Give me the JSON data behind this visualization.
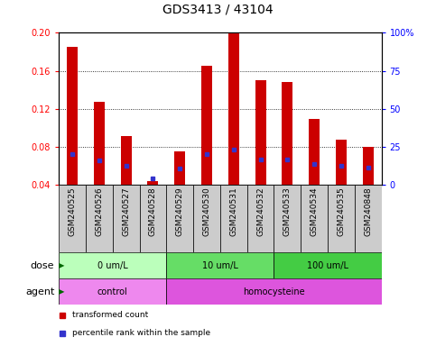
{
  "title": "GDS3413 / 43104",
  "samples": [
    "GSM240525",
    "GSM240526",
    "GSM240527",
    "GSM240528",
    "GSM240529",
    "GSM240530",
    "GSM240531",
    "GSM240532",
    "GSM240533",
    "GSM240534",
    "GSM240535",
    "GSM240848"
  ],
  "transformed_count": [
    0.185,
    0.128,
    0.092,
    0.044,
    0.075,
    0.165,
    0.2,
    0.15,
    0.148,
    0.11,
    0.088,
    0.08
  ],
  "percentile_rank": [
    0.073,
    0.066,
    0.06,
    0.047,
    0.057,
    0.073,
    0.077,
    0.067,
    0.067,
    0.062,
    0.06,
    0.058
  ],
  "bar_bottom": 0.04,
  "ylim": [
    0.04,
    0.2
  ],
  "yticks": [
    0.04,
    0.08,
    0.12,
    0.16,
    0.2
  ],
  "right_yticks": [
    0,
    25,
    50,
    75,
    100
  ],
  "right_ytick_labels": [
    "0",
    "25",
    "50",
    "75",
    "100%"
  ],
  "bar_color": "#cc0000",
  "percentile_color": "#3333cc",
  "dose_groups": [
    {
      "label": "0 um/L",
      "start": 0,
      "end": 4,
      "color": "#bbffbb"
    },
    {
      "label": "10 um/L",
      "start": 4,
      "end": 8,
      "color": "#66dd66"
    },
    {
      "label": "100 um/L",
      "start": 8,
      "end": 12,
      "color": "#44cc44"
    }
  ],
  "agent_groups": [
    {
      "label": "control",
      "start": 0,
      "end": 4,
      "color": "#ee88ee"
    },
    {
      "label": "homocysteine",
      "start": 4,
      "end": 12,
      "color": "#dd55dd"
    }
  ],
  "dose_label": "dose",
  "agent_label": "agent",
  "legend_items": [
    {
      "label": "transformed count",
      "color": "#cc0000"
    },
    {
      "label": "percentile rank within the sample",
      "color": "#3333cc"
    }
  ],
  "title_fontsize": 10,
  "tick_fontsize": 7,
  "label_fontsize": 8,
  "xtick_fontsize": 6.5,
  "xticklabel_bg": "#cccccc",
  "bar_width": 0.4
}
